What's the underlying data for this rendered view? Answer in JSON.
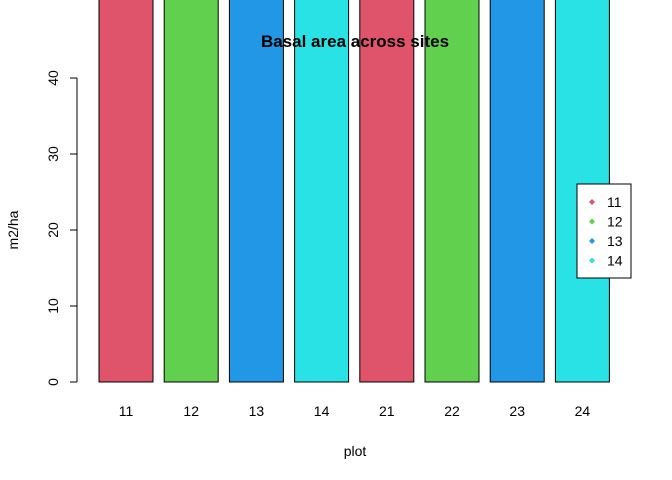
{
  "chart_data": {
    "type": "bar",
    "title": "Basal area across sites",
    "xlabel": "plot",
    "ylabel": "m2/ha",
    "categories": [
      "11",
      "12",
      "13",
      "14",
      "21",
      "22",
      "23",
      "24"
    ],
    "values": [
      51,
      51,
      51,
      51,
      51,
      51,
      51,
      51
    ],
    "bar_colors": [
      "#DF536B",
      "#61D04F",
      "#2297E6",
      "#28E2E5",
      "#DF536B",
      "#61D04F",
      "#2297E6",
      "#28E2E5"
    ],
    "ylim": [
      0,
      51
    ],
    "yticks": [
      0,
      10,
      20,
      30,
      40
    ],
    "grid": false,
    "legend": {
      "placement": "right",
      "entries": [
        {
          "label": "11",
          "color": "#DF536B"
        },
        {
          "label": "12",
          "color": "#61D04F"
        },
        {
          "label": "13",
          "color": "#2297E6"
        },
        {
          "label": "14",
          "color": "#28E2E5"
        }
      ]
    }
  }
}
